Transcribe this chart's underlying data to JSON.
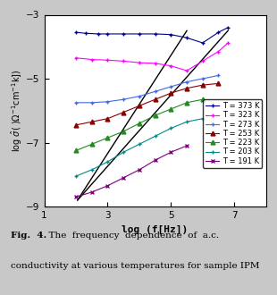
{
  "xlabel": "log (f[Hz])",
  "ylabel": "log σ̂( )Ω⁻¹cm⁻¹k])",
  "xlim": [
    1,
    8
  ],
  "ylim": [
    -9,
    -3
  ],
  "xticks": [
    1,
    3,
    5,
    7
  ],
  "yticks": [
    -9,
    -7,
    -5,
    -3
  ],
  "background_color": "#c8c8c8",
  "plot_bg": "#ffffff",
  "series": [
    {
      "label": "T = 373 K",
      "color": "#00008B",
      "marker": "+",
      "x": [
        2.0,
        2.3,
        2.7,
        3.0,
        3.5,
        4.0,
        4.5,
        5.0,
        5.5,
        6.0,
        6.5,
        6.8
      ],
      "y": [
        -3.55,
        -3.58,
        -3.6,
        -3.6,
        -3.6,
        -3.6,
        -3.6,
        -3.62,
        -3.72,
        -3.88,
        -3.55,
        -3.4
      ]
    },
    {
      "label": "T = 323 K",
      "color": "#FF00FF",
      "marker": "+",
      "x": [
        2.0,
        2.5,
        3.0,
        3.5,
        4.0,
        4.5,
        5.0,
        5.5,
        6.0,
        6.5,
        6.8
      ],
      "y": [
        -4.35,
        -4.4,
        -4.42,
        -4.45,
        -4.5,
        -4.52,
        -4.6,
        -4.75,
        -4.45,
        -4.15,
        -3.88
      ]
    },
    {
      "label": "T = 273 K",
      "color": "#4169E1",
      "marker": "+",
      "x": [
        2.0,
        2.5,
        3.0,
        3.5,
        4.0,
        4.5,
        5.0,
        5.5,
        6.0,
        6.5
      ],
      "y": [
        -5.75,
        -5.75,
        -5.72,
        -5.65,
        -5.55,
        -5.4,
        -5.25,
        -5.1,
        -5.0,
        -4.9
      ]
    },
    {
      "label": "T = 253 K",
      "color": "#8B0000",
      "marker": "^",
      "x": [
        2.0,
        2.5,
        3.0,
        3.5,
        4.0,
        4.5,
        5.0,
        5.5,
        6.0,
        6.5
      ],
      "y": [
        -6.45,
        -6.35,
        -6.25,
        -6.05,
        -5.85,
        -5.65,
        -5.45,
        -5.3,
        -5.2,
        -5.15
      ]
    },
    {
      "label": "T = 223 K",
      "color": "#228B22",
      "marker": "^",
      "x": [
        2.0,
        2.5,
        3.0,
        3.5,
        4.0,
        4.5,
        5.0,
        5.5,
        6.0
      ],
      "y": [
        -7.25,
        -7.05,
        -6.85,
        -6.65,
        -6.4,
        -6.15,
        -5.95,
        -5.75,
        -5.65
      ]
    },
    {
      "label": "T = 203 K",
      "color": "#008B8B",
      "marker": "+",
      "x": [
        2.0,
        2.5,
        3.0,
        3.5,
        4.0,
        4.5,
        5.0,
        5.5,
        6.0
      ],
      "y": [
        -8.05,
        -7.85,
        -7.6,
        -7.3,
        -7.05,
        -6.8,
        -6.55,
        -6.35,
        -6.25
      ]
    },
    {
      "label": "T = 191 K",
      "color": "#800080",
      "marker": "x",
      "x": [
        2.0,
        2.5,
        3.0,
        3.5,
        4.0,
        4.5,
        5.0,
        5.5
      ],
      "y": [
        -8.7,
        -8.55,
        -8.35,
        -8.1,
        -7.85,
        -7.55,
        -7.3,
        -7.1
      ]
    }
  ],
  "fit_lines": [
    {
      "x": [
        2.05,
        5.5
      ],
      "y": [
        -8.8,
        -3.5
      ]
    },
    {
      "x": [
        2.05,
        6.8
      ],
      "y": [
        -8.8,
        -3.5
      ]
    }
  ],
  "caption_bold": "Fig.  4.",
  "caption_rest": "  The  frequency  dependence  of  a.c.",
  "caption_line2": "conductivity at various temperatures for sample IPM"
}
